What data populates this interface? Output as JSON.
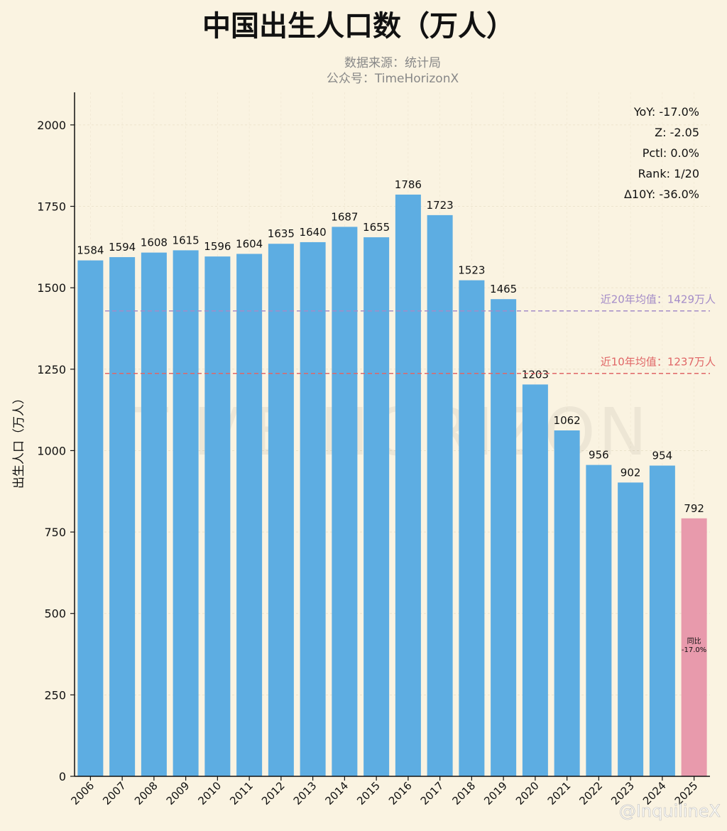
{
  "chart_data": {
    "type": "bar",
    "title": "中国出生人口数（万人）",
    "subtitle_lines": [
      "数据来源：统计局",
      "公众号：TimeHorizonX"
    ],
    "ylabel": "出生人口（万人）",
    "xlabel": "",
    "ylim": [
      0,
      2100
    ],
    "yticks": [
      0,
      250,
      500,
      750,
      1000,
      1250,
      1500,
      1750,
      2000
    ],
    "grid": true,
    "categories": [
      "2006",
      "2007",
      "2008",
      "2009",
      "2010",
      "2011",
      "2012",
      "2013",
      "2014",
      "2015",
      "2016",
      "2017",
      "2018",
      "2019",
      "2020",
      "2021",
      "2022",
      "2023",
      "2024",
      "2025"
    ],
    "values": [
      1584,
      1594,
      1608,
      1615,
      1596,
      1604,
      1635,
      1640,
      1687,
      1655,
      1786,
      1723,
      1523,
      1465,
      1203,
      1062,
      956,
      902,
      954,
      792
    ],
    "colors": {
      "bar": "#5dade2",
      "highlight": "#e89aac",
      "mean20": "#a48cc8",
      "mean10": "#e06666",
      "background": "#faf3e1"
    },
    "reference_lines": [
      {
        "value": 1429,
        "label": "近20年均值：1429万人",
        "color": "#a48cc8"
      },
      {
        "value": 1237,
        "label": "近10年均值：1237万人",
        "color": "#e06666"
      }
    ],
    "highlight_annotation": [
      "同比",
      "-17.0%"
    ],
    "stats": [
      "YoY: -17.0%",
      "Z: -2.05",
      "Pctl: 0.0%",
      "Rank: 1/20",
      "Δ10Y: -36.0%"
    ],
    "watermark": "TIME HORIZON",
    "credit": "@InquilineX"
  }
}
